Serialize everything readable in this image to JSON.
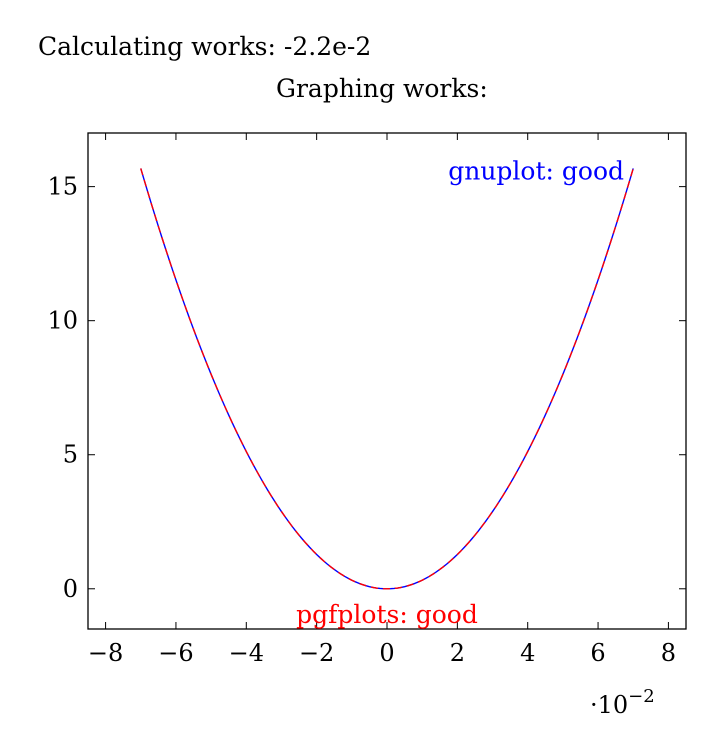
{
  "header": {
    "calc_label": "Calculating works:",
    "calc_value": "-2.2e-2",
    "graph_label": "Graphing works:"
  },
  "chart_data": {
    "type": "line",
    "x_multiplier_label": "·10",
    "x_multiplier_exp": "−2",
    "xlim": [
      -0.085,
      0.085
    ],
    "ylim": [
      -1.5,
      17
    ],
    "xticks": [
      -0.08,
      -0.06,
      -0.04,
      -0.02,
      0,
      0.02,
      0.04,
      0.06,
      0.08
    ],
    "xtick_labels": [
      "−8",
      "−6",
      "−4",
      "−2",
      "0",
      "2",
      "4",
      "6",
      "8"
    ],
    "yticks": [
      0,
      5,
      10,
      15
    ],
    "ytick_labels": [
      "0",
      "5",
      "10",
      "15"
    ],
    "grid": false,
    "series": [
      {
        "name": "gnuplot: good",
        "color": "#0000ff",
        "formula": "y = 3200 * x^2",
        "x_range": [
          -0.07,
          0.07
        ],
        "label_position": "top-right"
      },
      {
        "name": "pgfplots: good",
        "color": "#ff0000",
        "formula": "y = 3200 * x^2",
        "x_range": [
          -0.07,
          0.07
        ],
        "dashed": true,
        "label_position": "bottom-center"
      }
    ]
  }
}
